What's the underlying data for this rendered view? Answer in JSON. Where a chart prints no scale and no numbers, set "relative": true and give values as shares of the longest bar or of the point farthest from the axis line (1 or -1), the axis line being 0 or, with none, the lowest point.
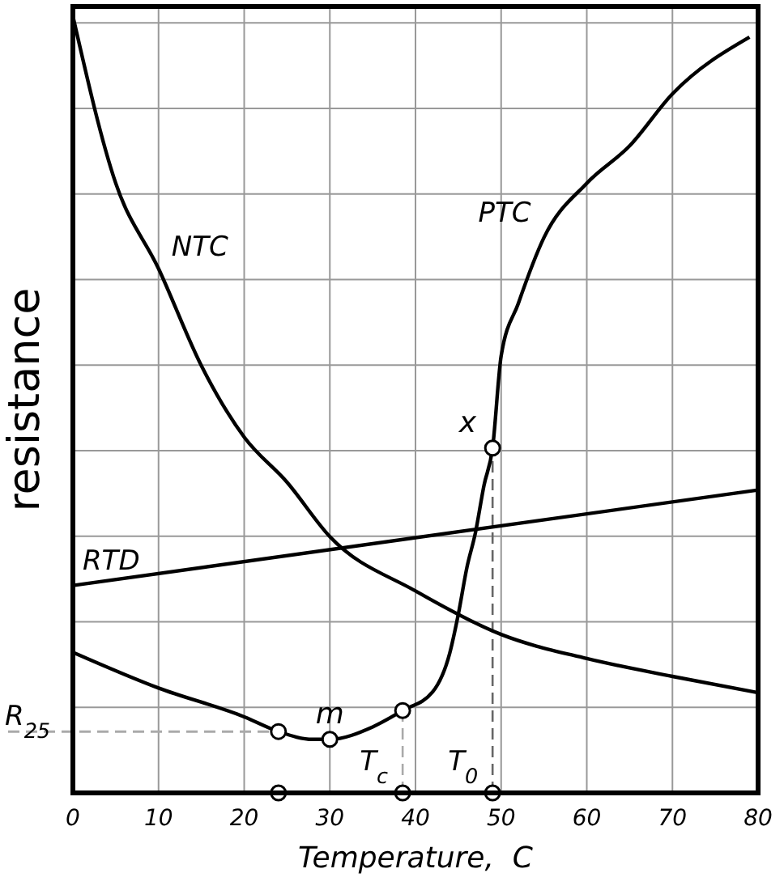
{
  "chart_data": {
    "type": "line",
    "xlabel": "Temperature,  C",
    "ylabel": "resistance",
    "relative": true,
    "tick_labels": "x",
    "grid": true,
    "xlim": [
      0,
      80
    ],
    "xticks": [
      0,
      10,
      20,
      30,
      40,
      50,
      60,
      70,
      80
    ],
    "series": [
      {
        "name": "NTC",
        "color": "#000000",
        "x": [
          0,
          5,
          10,
          15,
          20,
          25,
          30,
          40,
          50,
          60,
          70,
          80
        ],
        "values": [
          1.0,
          0.785,
          0.675,
          0.55,
          0.458,
          0.4,
          0.33,
          0.26,
          0.204,
          0.173,
          0.15,
          0.129
        ]
      },
      {
        "name": "RTD",
        "color": "#000000",
        "x": [
          0,
          80
        ],
        "values": [
          0.267,
          0.39
        ]
      },
      {
        "name": "PTC",
        "color": "#000000",
        "x": [
          0,
          10,
          20,
          24,
          28,
          30,
          35,
          38.5,
          42,
          44,
          45,
          46,
          47,
          48,
          49,
          50,
          52,
          55,
          60,
          65,
          70,
          79
        ],
        "values": [
          0.181,
          0.135,
          0.098,
          0.079,
          0.069,
          0.069,
          0.085,
          0.106,
          0.13,
          0.18,
          0.23,
          0.29,
          0.335,
          0.396,
          0.444,
          0.5625,
          0.63,
          0.715,
          0.785,
          0.833,
          0.9,
          0.973
        ]
      },
      {
        "type": "scatter",
        "marker": "circle",
        "color": "#000000",
        "x": [
          24,
          30,
          38.5,
          49,
          24,
          38.5,
          49
        ],
        "values": [
          0.079,
          0.069,
          0.106,
          0.444,
          0,
          0,
          0
        ]
      }
    ],
    "ref_lines": [
      {
        "axis": "y",
        "value": 0.079,
        "label": "R$_{25}$",
        "color": "#aaaaaa",
        "line_style": "dashed"
      },
      {
        "axis": "x",
        "value": 38.5,
        "label": "T$_{c}$",
        "color": "#aaaaaa",
        "line_style": "dashed"
      },
      {
        "axis": "x",
        "value": 49,
        "label": "T$_{0}$",
        "color": "#666666",
        "line_style": "dashed"
      }
    ],
    "annotations": [
      {
        "text": "m",
        "x": 30,
        "y": 0.069
      },
      {
        "text": "x",
        "x": 49,
        "y": 0.444
      }
    ]
  }
}
